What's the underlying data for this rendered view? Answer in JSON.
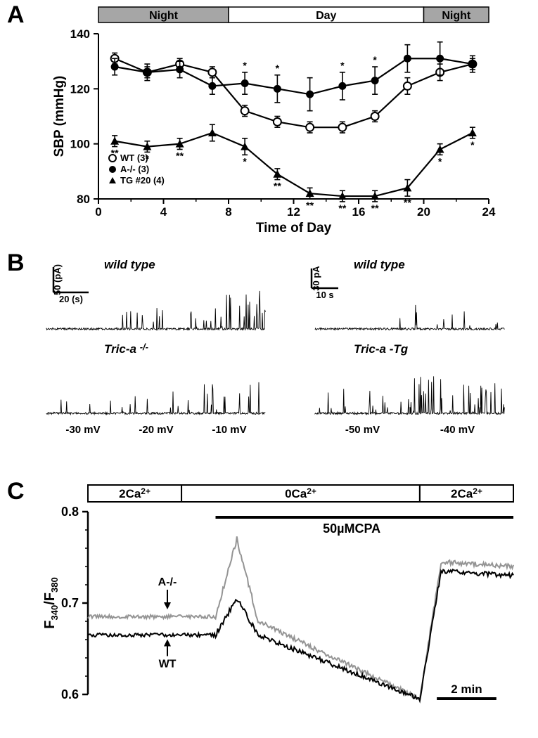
{
  "panelA": {
    "label": "A",
    "ylabel": "SBP (mmHg)",
    "xlabel": "Time of Day",
    "xlim": [
      0,
      24
    ],
    "ylim": [
      80,
      140
    ],
    "xticks": [
      0,
      4,
      8,
      12,
      16,
      20,
      24
    ],
    "yticks": [
      80,
      100,
      120,
      140
    ],
    "day_night_bar": {
      "segments": [
        {
          "label": "Night",
          "start": 0,
          "end": 8,
          "fill": "#a6a6a6"
        },
        {
          "label": "Day",
          "start": 8,
          "end": 20,
          "fill": "#ffffff"
        },
        {
          "label": "Night",
          "start": 20,
          "end": 24,
          "fill": "#a6a6a6"
        }
      ],
      "text_color": "#000000",
      "border_color": "#000000"
    },
    "series": [
      {
        "name": "WT (3)",
        "marker": "open-circle",
        "color": "#000000",
        "hours": [
          1,
          3,
          5,
          7,
          9,
          11,
          13,
          15,
          17,
          19,
          21,
          23
        ],
        "sbp": [
          131,
          126,
          129,
          126,
          112,
          108,
          106,
          106,
          110,
          121,
          126,
          129
        ],
        "err": [
          2,
          2,
          2,
          2,
          2,
          2,
          2,
          2,
          2,
          3,
          3,
          2
        ],
        "sig": [
          "",
          "",
          "",
          "",
          "",
          "",
          "",
          "",
          "",
          "",
          "",
          ""
        ]
      },
      {
        "name": "A-/- (3)",
        "marker": "filled-circle",
        "color": "#000000",
        "hours": [
          1,
          3,
          5,
          7,
          9,
          11,
          13,
          15,
          17,
          19,
          21,
          23
        ],
        "sbp": [
          128,
          126,
          127,
          121,
          122,
          120,
          118,
          121,
          123,
          131,
          131,
          129
        ],
        "err": [
          3,
          3,
          3,
          3,
          4,
          5,
          6,
          5,
          5,
          5,
          6,
          3
        ],
        "sig": [
          "",
          "",
          "",
          "",
          "*",
          "*",
          "",
          "*",
          "*",
          "",
          "",
          ""
        ]
      },
      {
        "name": "TG #20 (4)",
        "marker": "filled-triangle",
        "color": "#000000",
        "hours": [
          1,
          3,
          5,
          7,
          9,
          11,
          13,
          15,
          17,
          19,
          21,
          23
        ],
        "sbp": [
          101,
          99,
          100,
          104,
          99,
          89,
          82,
          81,
          81,
          84,
          98,
          104
        ],
        "err": [
          2,
          2,
          2,
          3,
          3,
          2,
          2,
          2,
          2,
          3,
          2,
          2
        ],
        "sig": [
          "**",
          "*",
          "**",
          "",
          "*",
          "**",
          "**",
          "**",
          "**",
          "**",
          "*",
          "*"
        ]
      }
    ],
    "axis_color": "#000000",
    "tick_fontsize": 16,
    "label_fontsize": 18,
    "legend_fontsize": 13
  },
  "panelB": {
    "label": "B",
    "left": {
      "scale_y": "50 (pA)",
      "scale_x": "20 (s)",
      "traces": [
        {
          "label": "wild type",
          "voltages": [
            "-30 mV",
            "-20 mV",
            "-10 mV"
          ]
        },
        {
          "label": "Tric-a -/-",
          "voltages": [
            "-30 mV",
            "-20 mV",
            "-10 mV"
          ]
        }
      ]
    },
    "right": {
      "scale_y": "30 pA",
      "scale_x": "10 s",
      "traces": [
        {
          "label": "wild type",
          "voltages": [
            "-50 mV",
            "-40 mV"
          ]
        },
        {
          "label": "Tric-a -Tg",
          "voltages": [
            "-50 mV",
            "-40 mV"
          ]
        }
      ]
    },
    "trace_color": "#000000",
    "font_italic": true
  },
  "panelC": {
    "label": "C",
    "ylabel": "F340/F380",
    "ylim": [
      0.6,
      0.8
    ],
    "yticks": [
      0.6,
      0.7,
      0.8
    ],
    "condition_bar": {
      "segments": [
        {
          "label": "2Ca2+",
          "start": 0,
          "end": 0.22
        },
        {
          "label": "0Ca2+",
          "start": 0.22,
          "end": 0.78
        },
        {
          "label": "2Ca2+",
          "start": 0.78,
          "end": 1.0
        }
      ]
    },
    "drug_bar": {
      "label": "50µMCPA",
      "start": 0.3,
      "end": 1.0
    },
    "scale_bar": {
      "label": "2 min"
    },
    "traces": [
      {
        "name": "WT",
        "color": "#000000"
      },
      {
        "name": "A-/-",
        "color": "#949494"
      }
    ]
  }
}
